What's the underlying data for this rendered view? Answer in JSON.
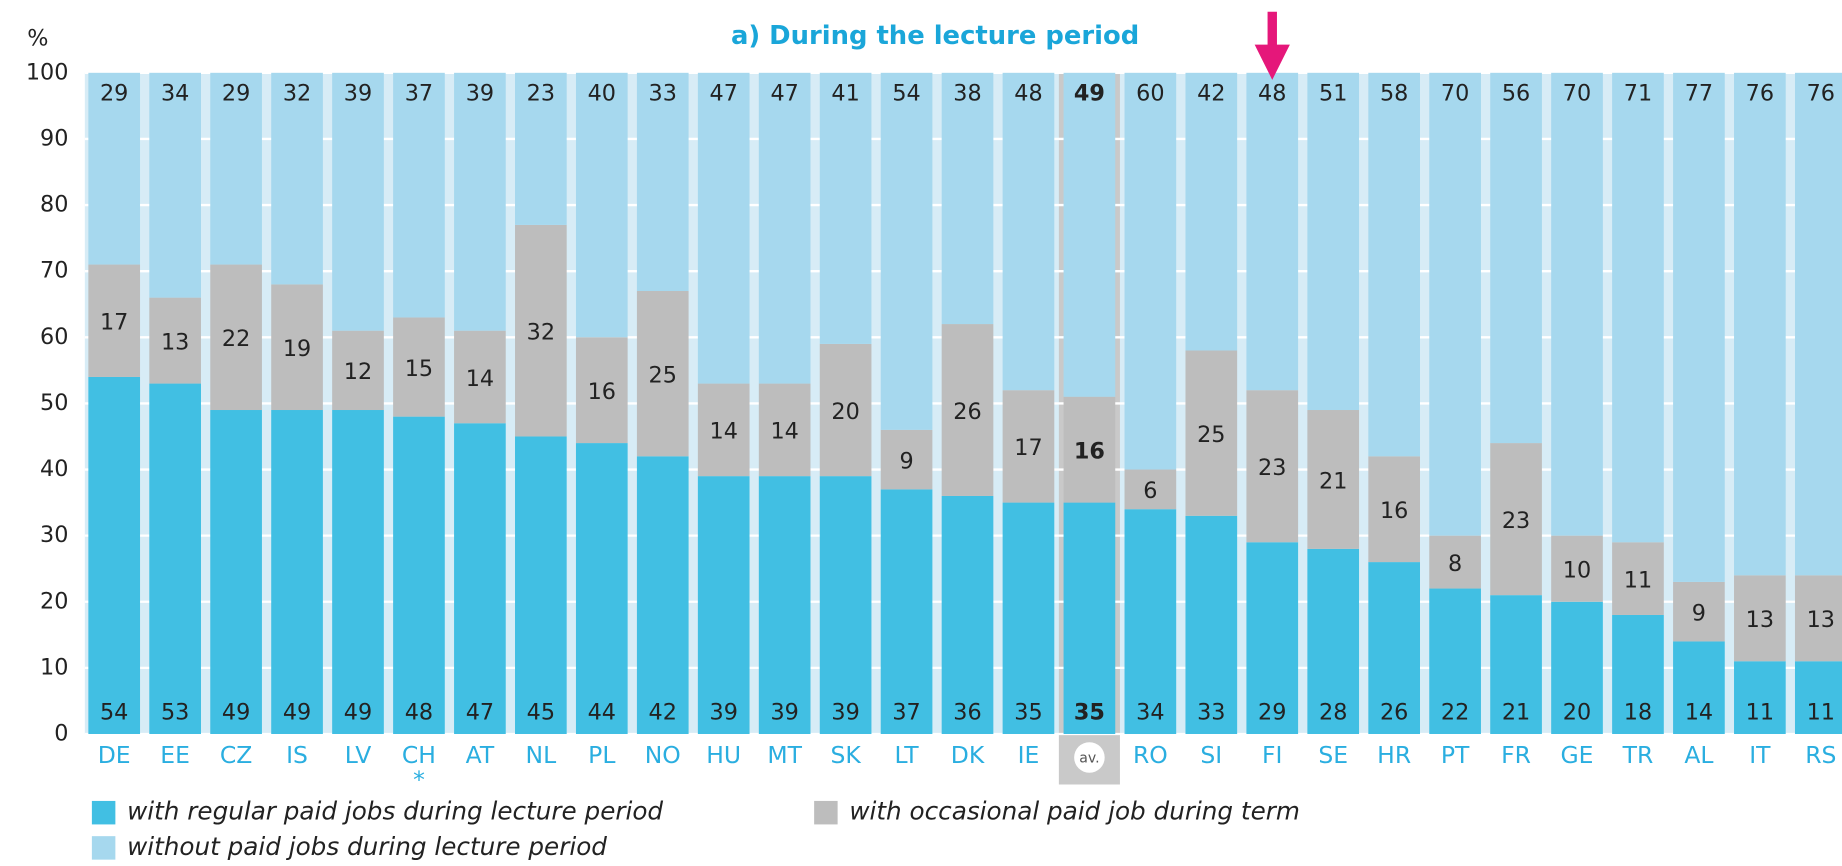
{
  "chart_data": {
    "type": "stacked_bar",
    "title": "a) During the lecture period",
    "y_label": "%",
    "categories": [
      "DE",
      "EE",
      "CZ",
      "IS",
      "LV",
      "CH",
      "AT",
      "NL",
      "PL",
      "NO",
      "HU",
      "MT",
      "SK",
      "LT",
      "DK",
      "IE",
      "av.",
      "RO",
      "SI",
      "FI",
      "SE",
      "HR",
      "PT",
      "FR",
      "GE",
      "TR",
      "AL",
      "IT",
      "RS"
    ],
    "series": [
      {
        "name": "with regular paid jobs during lecture period",
        "color": "#41bfe3",
        "values": [
          54,
          53,
          49,
          49,
          49,
          48,
          47,
          45,
          44,
          42,
          39,
          39,
          39,
          37,
          36,
          35,
          35,
          34,
          33,
          29,
          28,
          26,
          22,
          21,
          20,
          18,
          14,
          11,
          11
        ]
      },
      {
        "name": "with occasional paid job during term",
        "color": "#bdbdbd",
        "values": [
          17,
          13,
          22,
          19,
          12,
          15,
          14,
          32,
          16,
          25,
          14,
          14,
          20,
          9,
          26,
          17,
          16,
          6,
          25,
          23,
          21,
          16,
          8,
          23,
          10,
          11,
          9,
          13,
          13
        ]
      },
      {
        "name": "without paid jobs during lecture period",
        "color": "#a6d8ee",
        "values": [
          29,
          34,
          29,
          32,
          39,
          37,
          39,
          23,
          40,
          33,
          47,
          47,
          41,
          54,
          38,
          48,
          49,
          60,
          42,
          48,
          51,
          58,
          70,
          56,
          70,
          71,
          77,
          76,
          76
        ]
      }
    ],
    "annotations": [
      {
        "text": "*",
        "category": 5
      }
    ],
    "highlight_category": 16,
    "arrow_category": 19,
    "ylim": [
      0,
      100
    ],
    "yticks": [
      0,
      10,
      20,
      30,
      40,
      50,
      60,
      70,
      80,
      90,
      100
    ],
    "grid": true
  }
}
